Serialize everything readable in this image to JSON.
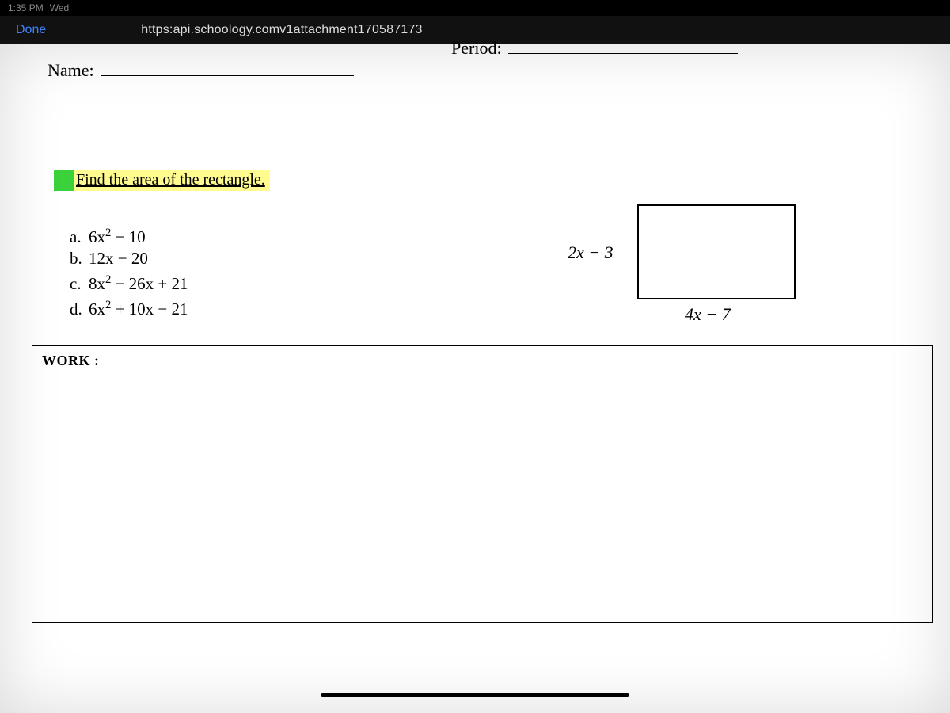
{
  "status": {
    "time": "1:35 PM",
    "day": "Wed"
  },
  "browser": {
    "done_label": "Done",
    "url": "https:api.schoology.comv1attachment170587173"
  },
  "worksheet": {
    "name_label": "Name:",
    "period_label": "Period:",
    "prompt": "Find the area of the rectangle.",
    "choices": [
      {
        "key": "a.",
        "expr_html": "6x<sup>2</sup> − 10"
      },
      {
        "key": "b.",
        "expr_html": "12x − 20"
      },
      {
        "key": "c.",
        "expr_html": "8x<sup>2</sup> − 26x + 21"
      },
      {
        "key": "d.",
        "expr_html": "6x<sup>2</sup> + 10x − 21"
      }
    ],
    "figure": {
      "left_side_html": "2<span class=\"mi\">x</span> − 3",
      "bottom_side_html": "4<span class=\"mi\">x</span> − 7"
    },
    "work_label": "WORK :"
  },
  "colors": {
    "highlight": "#fffb8f",
    "green_box": "#3bd13b",
    "link_blue": "#3b82f6"
  }
}
